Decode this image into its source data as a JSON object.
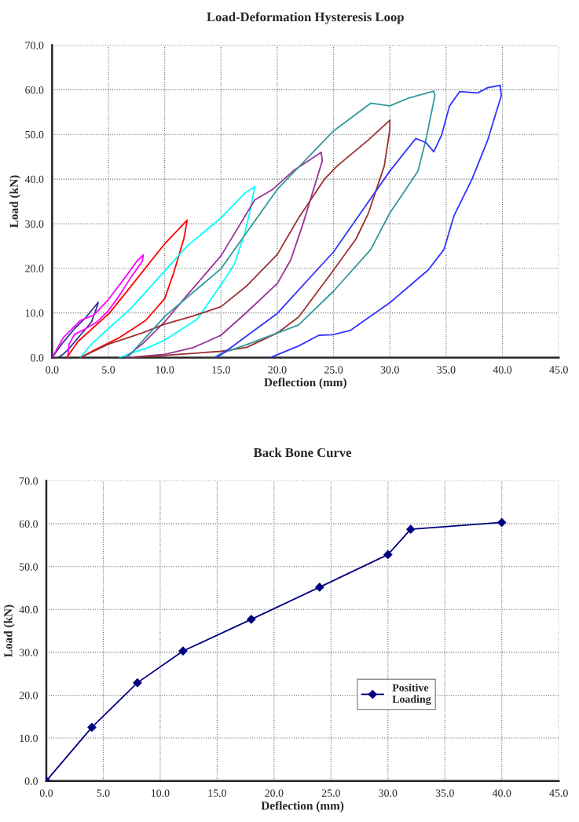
{
  "chart_data": [
    {
      "type": "line",
      "title": "Load-Deformation Hysteresis Loop",
      "xlabel": "Deflection (mm)",
      "ylabel": "Load (kN)",
      "grid": true,
      "marker": "none",
      "line_style": "solid",
      "legend": false,
      "xlim": [
        0,
        45
      ],
      "ylim": [
        0,
        70
      ],
      "xticks": [
        {
          "value": 0,
          "label": "0.0"
        },
        {
          "value": 5,
          "label": "5.0"
        },
        {
          "value": 10,
          "label": "10.0"
        },
        {
          "value": 15,
          "label": "15.0"
        },
        {
          "value": 20,
          "label": "20.0"
        },
        {
          "value": 25,
          "label": "25.0"
        },
        {
          "value": 30,
          "label": "30.0"
        },
        {
          "value": 35,
          "label": "35.0"
        },
        {
          "value": 40,
          "label": "40.0"
        },
        {
          "value": 45,
          "label": "45.0"
        }
      ],
      "yticks": [
        {
          "value": 0,
          "label": "0.0"
        },
        {
          "value": 10,
          "label": "10.0"
        },
        {
          "value": 20,
          "label": "20.0"
        },
        {
          "value": 30,
          "label": "30.0"
        },
        {
          "value": 40,
          "label": "40.0"
        },
        {
          "value": 50,
          "label": "50.0"
        },
        {
          "value": 60,
          "label": "60.0"
        },
        {
          "value": 70,
          "label": "70.0"
        }
      ],
      "series": [
        {
          "color": "#333399",
          "x": [
            0,
            1,
            2,
            3,
            4.1,
            4.0,
            3.5,
            2.5,
            1.5,
            1,
            0.5
          ],
          "values": [
            0,
            3.5,
            6.5,
            9,
            12.4,
            11.5,
            8,
            5,
            2,
            0.8,
            0
          ]
        },
        {
          "color": "#ff00ff",
          "x": [
            0,
            1,
            2.5,
            3.7,
            5,
            6.5,
            7.5,
            8.1,
            8,
            7,
            6,
            5,
            4,
            3,
            2,
            1.5,
            1.4
          ],
          "values": [
            0,
            4.5,
            8.3,
            9.5,
            13,
            18,
            21.5,
            23,
            21.5,
            18,
            14,
            10.5,
            8,
            6.5,
            5.2,
            3,
            0
          ]
        },
        {
          "color": "#ff0000",
          "x": [
            1.3,
            2.3,
            5.1,
            6.7,
            10,
            12,
            11.7,
            10.8,
            10,
            8.3,
            6,
            3.7,
            2.5
          ],
          "values": [
            0,
            3.6,
            10,
            15,
            25.5,
            30.8,
            26.6,
            19,
            13.2,
            8.3,
            4.5,
            1.6,
            0
          ]
        },
        {
          "color": "#00ffff",
          "x": [
            2.5,
            3.5,
            5,
            7,
            10,
            12,
            15,
            17.1,
            18,
            17.6,
            17.1,
            16.2,
            15.4,
            12.9,
            10,
            8.5,
            6.7,
            6
          ],
          "values": [
            0,
            3,
            6.5,
            11,
            19.4,
            25,
            31.3,
            36.8,
            38.3,
            33,
            27.8,
            21,
            17.8,
            8.6,
            3.9,
            2.2,
            0.7,
            0
          ]
        },
        {
          "color": "#993399",
          "x": [
            6.5,
            8,
            10,
            12,
            15,
            18,
            19.6,
            21.4,
            23.9,
            24,
            23.5,
            22.3,
            21.2,
            20,
            17.3,
            15,
            12.5,
            10,
            6.7
          ],
          "values": [
            0,
            3,
            8,
            14,
            22.8,
            35.3,
            37.7,
            41.8,
            46,
            44.1,
            40,
            30.1,
            21.9,
            16.6,
            10.2,
            5,
            2.2,
            0.7,
            0
          ]
        },
        {
          "color": "#993333",
          "x": [
            2.5,
            5,
            8,
            10,
            12.5,
            15,
            17.3,
            20,
            21.9,
            24.2,
            25.3,
            28.1,
            30,
            30,
            29.5,
            28.1,
            27,
            25,
            21.9,
            20,
            17.3,
            15,
            10,
            7
          ],
          "values": [
            0,
            3,
            5.5,
            7.5,
            9.3,
            11.4,
            16.1,
            23.1,
            31.3,
            40,
            42.9,
            48.8,
            53.2,
            51.1,
            42.9,
            32.4,
            26.6,
            19.6,
            9.1,
            5.5,
            2.3,
            1.4,
            0.5,
            0
          ]
        },
        {
          "color": "#339999",
          "x": [
            6.7,
            10,
            15,
            20,
            25,
            28.3,
            30,
            31.6,
            33.9,
            34,
            33.2,
            32.5,
            31.1,
            30,
            28.3,
            25,
            21.9,
            20,
            17.3,
            15,
            14.5
          ],
          "values": [
            0,
            9.2,
            19.9,
            37.7,
            50.8,
            57,
            56.4,
            58.1,
            59.7,
            58.7,
            48.8,
            41.8,
            36.5,
            32.4,
            24.2,
            14.9,
            7.3,
            5.5,
            2.9,
            0.9,
            0.2
          ]
        },
        {
          "color": "#3333ff",
          "x": [
            14.5,
            15,
            20,
            25,
            30,
            32.3,
            33.2,
            33.9,
            34.6,
            35.3,
            36.2,
            37.8,
            38.7,
            39.8,
            39.9,
            38.7,
            37.3,
            35.7,
            34.8,
            33.4,
            30,
            26.5,
            24.9,
            23.7,
            21.9,
            19.4
          ],
          "values": [
            0,
            0.6,
            9.9,
            23.7,
            41.8,
            49.1,
            48.2,
            46.1,
            49.9,
            56.4,
            59.6,
            59.3,
            60.5,
            61,
            58.7,
            48.8,
            40,
            31.8,
            24.2,
            19.6,
            12.3,
            6.1,
            5.1,
            5,
            2.6,
            0
          ]
        }
      ]
    },
    {
      "type": "line",
      "title": "Back Bone Curve",
      "xlabel": "Deflection (mm)",
      "ylabel": "Load (kN)",
      "grid": true,
      "marker": "diamond",
      "line_style": "solid",
      "legend": "bottom right",
      "xlim": [
        0,
        45
      ],
      "ylim": [
        0,
        70
      ],
      "xticks": [
        {
          "value": 0,
          "label": "0.0"
        },
        {
          "value": 5,
          "label": "5.0"
        },
        {
          "value": 10,
          "label": "10.0"
        },
        {
          "value": 15,
          "label": "15.0"
        },
        {
          "value": 20,
          "label": "20.0"
        },
        {
          "value": 25,
          "label": "25.0"
        },
        {
          "value": 30,
          "label": "30.0"
        },
        {
          "value": 35,
          "label": "35.0"
        },
        {
          "value": 40,
          "label": "40.0"
        },
        {
          "value": 45,
          "label": "45.0"
        }
      ],
      "yticks": [
        {
          "value": 0,
          "label": "0.0"
        },
        {
          "value": 10,
          "label": "10.0"
        },
        {
          "value": 20,
          "label": "20.0"
        },
        {
          "value": 30,
          "label": "30.0"
        },
        {
          "value": 40,
          "label": "40.0"
        },
        {
          "value": 50,
          "label": "50.0"
        },
        {
          "value": 60,
          "label": "60.0"
        },
        {
          "value": 70,
          "label": "70.0"
        }
      ],
      "series": [
        {
          "name": "Positive\nLoading",
          "color": "#000080",
          "x": [
            0,
            4,
            8,
            12,
            18,
            24,
            30,
            32,
            40
          ],
          "values": [
            0,
            12.5,
            22.9,
            30.3,
            37.7,
            45.2,
            52.8,
            58.7,
            60.3
          ]
        }
      ]
    }
  ]
}
